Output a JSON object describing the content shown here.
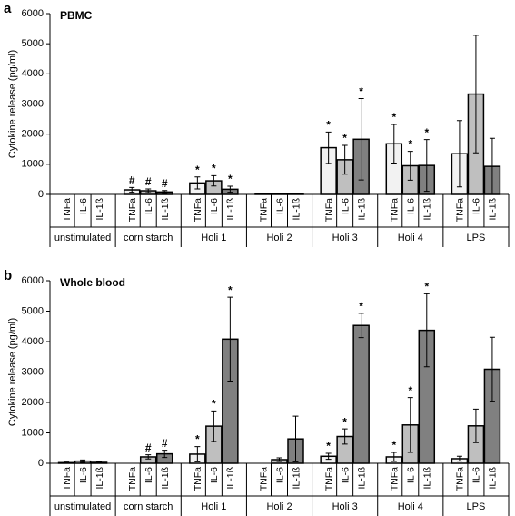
{
  "chart_data": [
    {
      "type": "bar",
      "panel_label": "a",
      "title": "PBMC",
      "ylabel": "Cytokine release (pg/ml)",
      "categories": [
        "unstimulated",
        "corn starch",
        "Holi 1",
        "Holi 2",
        "Holi 3",
        "Holi 4",
        "LPS"
      ],
      "ylim": [
        0,
        6000
      ],
      "yticks": [
        0,
        1000,
        2000,
        3000,
        4000,
        5000,
        6000
      ],
      "grid": false,
      "series": [
        {
          "name": "TNFa",
          "color": "#f2f2f2",
          "values": [
            0,
            150,
            380,
            10,
            1550,
            1680,
            1350
          ],
          "errors": [
            0,
            80,
            200,
            10,
            520,
            640,
            1100
          ],
          "annotations": [
            null,
            "#",
            "*",
            null,
            "*",
            "*",
            null
          ]
        },
        {
          "name": "IL-6",
          "color": "#bfbfbf",
          "values": [
            0,
            120,
            450,
            10,
            1150,
            950,
            3330
          ],
          "errors": [
            0,
            60,
            170,
            10,
            480,
            480,
            1950
          ],
          "annotations": [
            null,
            "#",
            "*",
            null,
            "*",
            "*",
            null
          ]
        },
        {
          "name": "IL-1ß",
          "color": "#808080",
          "values": [
            0,
            80,
            170,
            20,
            1830,
            960,
            930
          ],
          "errors": [
            0,
            50,
            100,
            10,
            1350,
            860,
            930
          ],
          "annotations": [
            null,
            "#",
            "*",
            null,
            "*",
            "*",
            null
          ]
        }
      ]
    },
    {
      "type": "bar",
      "panel_label": "b",
      "title": "Whole blood",
      "ylabel": "Cytokine release (pg/ml)",
      "categories": [
        "unstimulated",
        "corn starch",
        "Holi 1",
        "Holi 2",
        "Holi 3",
        "Holi 4",
        "LPS"
      ],
      "ylim": [
        0,
        6000
      ],
      "yticks": [
        0,
        1000,
        2000,
        3000,
        4000,
        5000,
        6000
      ],
      "grid": false,
      "series": [
        {
          "name": "TNFa",
          "color": "#f2f2f2",
          "values": [
            20,
            0,
            300,
            0,
            230,
            210,
            150
          ],
          "errors": [
            20,
            0,
            250,
            0,
            100,
            150,
            80
          ],
          "annotations": [
            null,
            null,
            "*",
            null,
            "*",
            "*",
            null
          ]
        },
        {
          "name": "IL-6",
          "color": "#bfbfbf",
          "values": [
            70,
            210,
            1220,
            120,
            880,
            1260,
            1230
          ],
          "errors": [
            40,
            70,
            500,
            60,
            250,
            900,
            550
          ],
          "annotations": [
            null,
            "#",
            "*",
            null,
            "*",
            "*",
            null
          ]
        },
        {
          "name": "IL-1ß",
          "color": "#808080",
          "values": [
            30,
            310,
            4080,
            800,
            4530,
            4370,
            3090
          ],
          "errors": [
            20,
            120,
            1380,
            750,
            400,
            1200,
            1050
          ],
          "annotations": [
            null,
            "#",
            "*",
            null,
            "*",
            "*",
            null
          ]
        }
      ]
    }
  ]
}
